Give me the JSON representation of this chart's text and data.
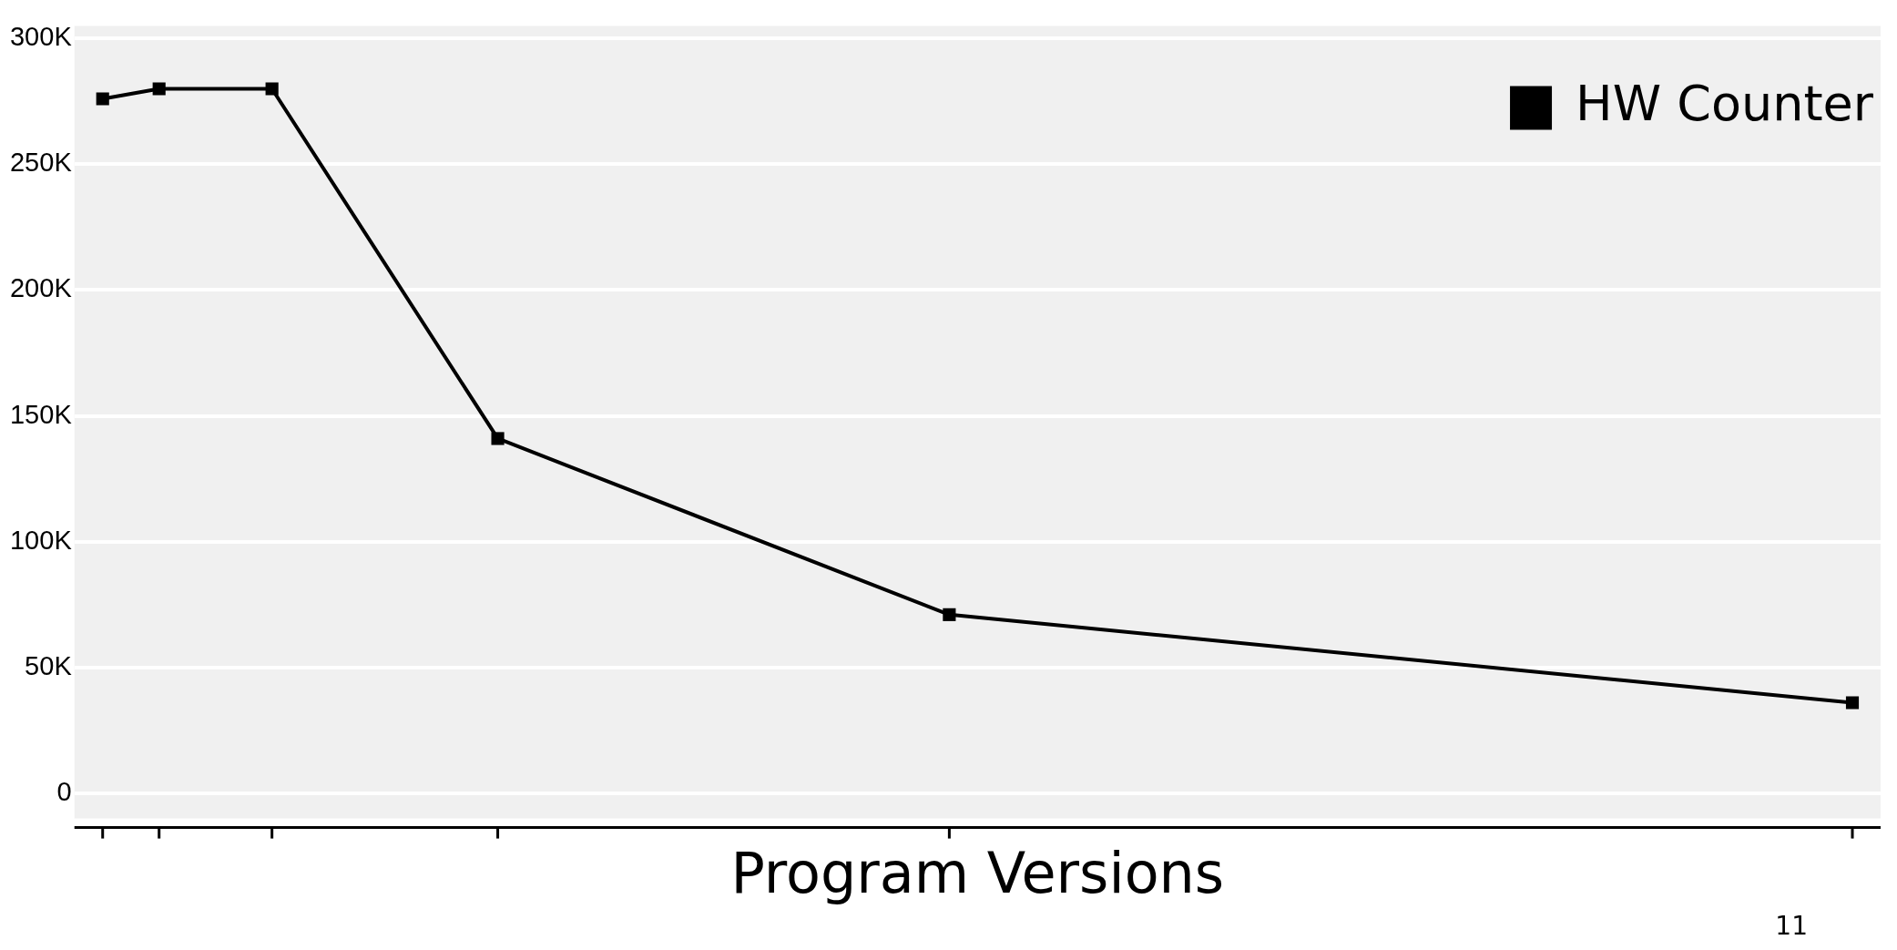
{
  "chart_data": {
    "type": "line",
    "xlabel": "Program Versions",
    "categories": [
      null,
      null,
      null,
      null,
      null,
      null,
      null,
      null,
      null,
      null,
      null,
      null,
      null,
      null,
      null,
      null,
      null,
      null,
      null,
      null,
      null,
      null,
      null,
      null,
      null,
      null,
      null,
      null,
      null,
      null,
      null,
      null
    ],
    "series": [
      {
        "name": "HW Counter",
        "color": "#000000",
        "values": [
          276000,
          280000,
          null,
          280000,
          null,
          null,
          null,
          141000,
          null,
          null,
          null,
          null,
          null,
          null,
          null,
          71000,
          null,
          null,
          null,
          null,
          null,
          null,
          null,
          null,
          null,
          null,
          null,
          null,
          null,
          null,
          null,
          36000
        ]
      }
    ],
    "ylim": [
      -10000,
      305000
    ],
    "yticks": [
      {
        "value": 0,
        "label": "0"
      },
      {
        "value": 50000,
        "label": "50K"
      },
      {
        "value": 100000,
        "label": "100K"
      },
      {
        "value": 150000,
        "label": "150K"
      },
      {
        "value": 200000,
        "label": "200K"
      },
      {
        "value": 250000,
        "label": "250K"
      },
      {
        "value": 300000,
        "label": "300K"
      }
    ],
    "grid": "y",
    "legend": "top right",
    "marker": "square",
    "line_style": "solid",
    "tick_labels": "y",
    "annotations": [
      "11"
    ]
  }
}
